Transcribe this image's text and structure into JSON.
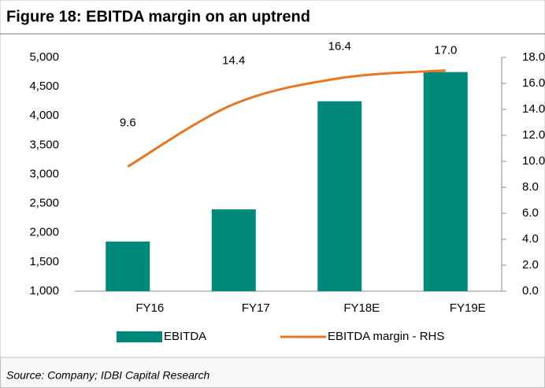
{
  "chart_data": {
    "type": "bar-line",
    "title": "Figure 18: EBITDA margin on an uptrend",
    "source": "Source: Company; IDBI Capital Research",
    "categories": [
      "FY16",
      "FY17",
      "FY18E",
      "FY19E"
    ],
    "series": [
      {
        "name": "EBITDA",
        "type": "bar",
        "color": "#00897b",
        "values": [
          1850,
          2400,
          4250,
          4750
        ]
      },
      {
        "name": "EBITDA margin - RHS",
        "type": "line",
        "axis": "y2",
        "color": "#e87722",
        "values": [
          9.6,
          14.4,
          16.4,
          17.0
        ],
        "value_labels": [
          "9.6",
          "14.4",
          "16.4",
          "17.0"
        ]
      }
    ],
    "ylim": [
      1000,
      5000
    ],
    "yticks": [
      {
        "value": 1000,
        "label": "1,000"
      },
      {
        "value": 1500,
        "label": "1,500"
      },
      {
        "value": 2000,
        "label": "2,000"
      },
      {
        "value": 2500,
        "label": "2,500"
      },
      {
        "value": 3000,
        "label": "3,000"
      },
      {
        "value": 3500,
        "label": "3,500"
      },
      {
        "value": 4000,
        "label": "4,000"
      },
      {
        "value": 4500,
        "label": "4,500"
      },
      {
        "value": 5000,
        "label": "5,000"
      }
    ],
    "y2lim": [
      0,
      18
    ],
    "y2ticks": [
      {
        "value": 0,
        "label": "0.0"
      },
      {
        "value": 2,
        "label": "2.0"
      },
      {
        "value": 4,
        "label": "4.0"
      },
      {
        "value": 6,
        "label": "6.0"
      },
      {
        "value": 8,
        "label": "8.0"
      },
      {
        "value": 10,
        "label": "10.0"
      },
      {
        "value": 12,
        "label": "12.0"
      },
      {
        "value": 14,
        "label": "14.0"
      },
      {
        "value": 16,
        "label": "16.0"
      },
      {
        "value": 18,
        "label": "18.0"
      }
    ],
    "legend": "bottom"
  }
}
